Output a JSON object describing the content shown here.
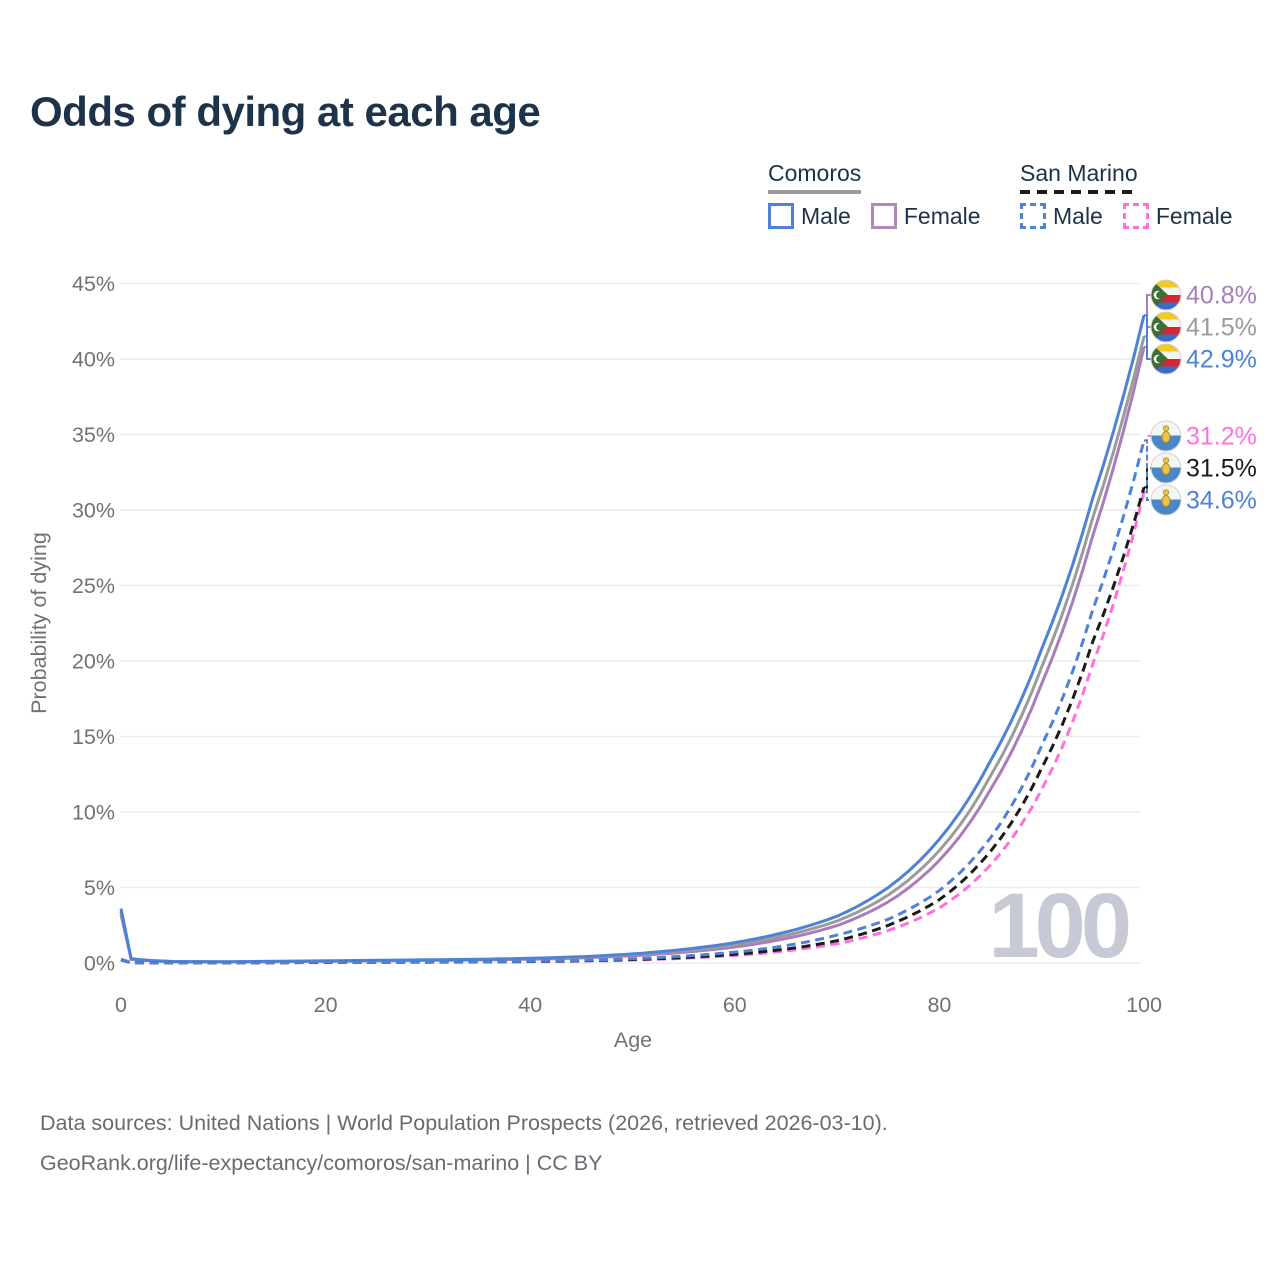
{
  "title": "Odds of dying at each age",
  "legend": {
    "groups": [
      {
        "name": "Comoros",
        "style": "solid",
        "color": "#9b9b9b",
        "items": [
          {
            "label": "Male",
            "color": "#4e82d6",
            "dash": false
          },
          {
            "label": "Female",
            "color": "#b287bd",
            "dash": false
          }
        ]
      },
      {
        "name": "San Marino",
        "style": "dashed",
        "color": "#1b1b1b",
        "items": [
          {
            "label": "Male",
            "color": "#4e82d6",
            "dash": true
          },
          {
            "label": "Female",
            "color": "#ff70dd",
            "dash": true
          }
        ]
      }
    ]
  },
  "chart_data": {
    "type": "line",
    "title": "Odds of dying at each age",
    "xlabel": "Age",
    "ylabel": "Probability of dying",
    "xlim": [
      0,
      100
    ],
    "ylim": [
      0,
      45
    ],
    "x_ticks": [
      0,
      20,
      40,
      60,
      80,
      100
    ],
    "y_ticks": [
      "0%",
      "5%",
      "10%",
      "15%",
      "20%",
      "25%",
      "30%",
      "35%",
      "40%",
      "45%"
    ],
    "grid": "horizontal",
    "legend_position": "top-right",
    "watermark": "100",
    "unit": "%",
    "ages": [
      0,
      1,
      5,
      10,
      15,
      20,
      25,
      30,
      35,
      40,
      45,
      50,
      55,
      60,
      65,
      70,
      75,
      80,
      85,
      90,
      95,
      100
    ],
    "series": [
      {
        "key": "comoros-female",
        "country": "Comoros",
        "group_label": "Female",
        "color": "#a97cba",
        "dash": false,
        "flag": "comoros",
        "end_label": "40.8%",
        "values": [
          3.2,
          0.24,
          0.09,
          0.07,
          0.09,
          0.11,
          0.14,
          0.17,
          0.2,
          0.25,
          0.34,
          0.48,
          0.71,
          1.06,
          1.62,
          2.48,
          4.05,
          6.8,
          11.5,
          18.5,
          28.3,
          40.8
        ]
      },
      {
        "key": "comoros-combined",
        "country": "Comoros",
        "group_label": "Comoros",
        "color": "#9b9b9b",
        "dash": false,
        "flag": "comoros",
        "end_label": "41.5%",
        "values": [
          3.4,
          0.26,
          0.09,
          0.07,
          0.1,
          0.13,
          0.16,
          0.19,
          0.22,
          0.28,
          0.38,
          0.54,
          0.8,
          1.2,
          1.83,
          2.78,
          4.5,
          7.45,
          12.4,
          19.6,
          29.5,
          41.5
        ]
      },
      {
        "key": "comoros-male",
        "country": "Comoros",
        "group_label": "Male",
        "color": "#4e82d6",
        "dash": false,
        "flag": "comoros",
        "end_label": "42.9%",
        "values": [
          3.6,
          0.28,
          0.1,
          0.08,
          0.11,
          0.15,
          0.18,
          0.21,
          0.25,
          0.31,
          0.42,
          0.6,
          0.9,
          1.35,
          2.05,
          3.1,
          5.0,
          8.2,
          13.4,
          20.8,
          30.8,
          42.9
        ]
      },
      {
        "key": "san-marino-female",
        "country": "San Marino",
        "group_label": "Female",
        "color": "#ff70dd",
        "dash": true,
        "flag": "sanmarino",
        "end_label": "31.2%",
        "values": [
          0.2,
          0.02,
          0.01,
          0.01,
          0.02,
          0.03,
          0.04,
          0.05,
          0.07,
          0.09,
          0.13,
          0.2,
          0.31,
          0.5,
          0.8,
          1.28,
          2.15,
          3.65,
          6.5,
          11.5,
          19.8,
          31.2
        ]
      },
      {
        "key": "san-marino-combined",
        "country": "San Marino",
        "group_label": "San Marino",
        "color": "#1b1b1b",
        "dash": true,
        "flag": "sanmarino",
        "end_label": "31.5%",
        "values": [
          0.22,
          0.02,
          0.01,
          0.01,
          0.02,
          0.04,
          0.05,
          0.06,
          0.08,
          0.1,
          0.15,
          0.23,
          0.36,
          0.58,
          0.92,
          1.48,
          2.5,
          4.2,
          7.4,
          12.9,
          21.3,
          31.5
        ]
      },
      {
        "key": "san-marino-male",
        "country": "San Marino",
        "group_label": "Male",
        "color": "#4e82d6",
        "dash": true,
        "flag": "sanmarino",
        "end_label": "34.6%",
        "values": [
          0.25,
          0.02,
          0.01,
          0.01,
          0.03,
          0.05,
          0.06,
          0.07,
          0.09,
          0.12,
          0.18,
          0.28,
          0.45,
          0.72,
          1.15,
          1.85,
          2.9,
          4.8,
          8.3,
          14.4,
          23.4,
          34.6
        ]
      }
    ]
  },
  "footer": {
    "line1": "Data sources: United Nations | World Population Prospects (2026, retrieved 2026-03-10).",
    "line2": "GeoRank.org/life-expectancy/comoros/san-marino | CC BY"
  }
}
